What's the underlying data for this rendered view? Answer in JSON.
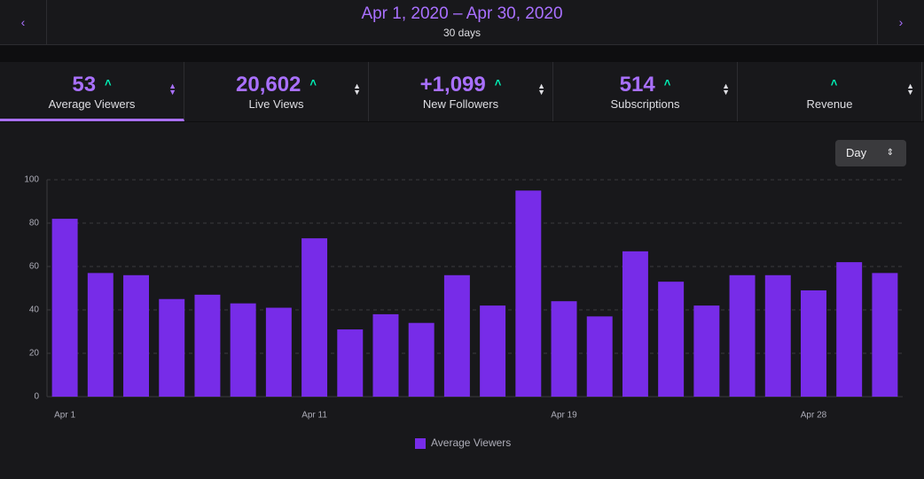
{
  "header": {
    "date_range": "Apr 1, 2020 – Apr 30, 2020",
    "duration": "30 days"
  },
  "stats": [
    {
      "value": "53",
      "label": "Average Viewers"
    },
    {
      "value": "20,602",
      "label": "Live Views"
    },
    {
      "value": "+1,099",
      "label": "New Followers"
    },
    {
      "value": "514",
      "label": "Subscriptions"
    },
    {
      "label": "Revenue"
    }
  ],
  "interval_select": "Day",
  "chart_data": {
    "type": "bar",
    "categories": [
      "Apr 1",
      null,
      null,
      null,
      null,
      null,
      null,
      "Apr 11",
      null,
      null,
      null,
      null,
      null,
      null,
      "Apr 19",
      null,
      null,
      null,
      null,
      null,
      null,
      "Apr 28",
      null,
      null
    ],
    "series": [
      {
        "name": "Average Viewers",
        "color": "#772ce8",
        "values": [
          82,
          57,
          56,
          45,
          47,
          43,
          41,
          73,
          31,
          38,
          34,
          56,
          42,
          95,
          44,
          37,
          67,
          53,
          42,
          56,
          56,
          49,
          62,
          57
        ]
      }
    ],
    "ylim": [
      0,
      100
    ],
    "yticks": [
      0,
      20,
      40,
      60,
      80,
      100
    ],
    "grid": true,
    "legend": "bottom"
  }
}
